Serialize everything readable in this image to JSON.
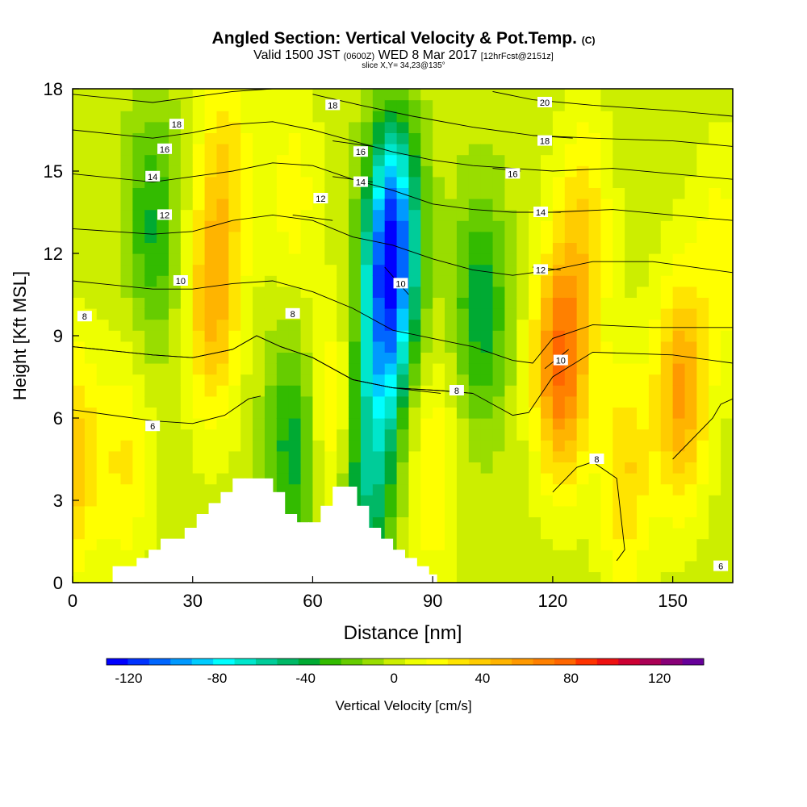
{
  "header": {
    "title": "Angled Section: Vertical Velocity & Pot.Temp.",
    "title_units": "(C)",
    "valid_a": "Valid 1500 JST",
    "valid_zulu": "(0600Z)",
    "valid_b": "WED 8 Mar 2017",
    "forecast": "[12hrFcst@2151z]",
    "slice": "slice X,Y= 34,23@135°"
  },
  "chart_data": {
    "type": "heatmap",
    "xlabel": "Distance [nm]",
    "ylabel": "Height [Kft MSL]",
    "xlim": [
      0,
      165
    ],
    "ylim": [
      0,
      18
    ],
    "x_ticks": [
      0,
      30,
      60,
      90,
      120,
      150
    ],
    "y_ticks": [
      0,
      3,
      6,
      9,
      12,
      15,
      18
    ],
    "colorbar": {
      "label": "Vertical Velocity [cm/s]",
      "range": [
        -130,
        140
      ],
      "ticks": [
        -120,
        -80,
        -40,
        0,
        40,
        80,
        120
      ],
      "colors": [
        "#0000ff",
        "#0033ff",
        "#0066ff",
        "#0099ff",
        "#00ccff",
        "#00ffff",
        "#00e6cc",
        "#00cc99",
        "#00b866",
        "#00aa33",
        "#33bb00",
        "#66cc00",
        "#99dd00",
        "#ccee00",
        "#eeff00",
        "#ffff00",
        "#ffe400",
        "#ffcc00",
        "#ffb400",
        "#ff9900",
        "#ff8000",
        "#ff6600",
        "#ff3300",
        "#ee1111",
        "#cc0033",
        "#aa0055",
        "#880077",
        "#660099"
      ]
    },
    "velocity_features": [
      {
        "x": 0,
        "y": 4.5,
        "w": 40
      },
      {
        "x": 13,
        "y": 4.5,
        "w": 25
      },
      {
        "x": 20,
        "y": 13,
        "w": -35
      },
      {
        "x": 35,
        "y": 10,
        "w": 45
      },
      {
        "x": 38,
        "y": 15,
        "w": 30
      },
      {
        "x": 55,
        "y": 5,
        "w": -40
      },
      {
        "x": 55,
        "y": 14,
        "w": 20
      },
      {
        "x": 65,
        "y": 6,
        "w": 30
      },
      {
        "x": 73,
        "y": 3,
        "w": -45
      },
      {
        "x": 80,
        "y": 12.5,
        "w": -115
      },
      {
        "x": 77,
        "y": 8,
        "w": -60
      },
      {
        "x": 90,
        "y": 4,
        "w": 25
      },
      {
        "x": 102,
        "y": 10,
        "w": -40
      },
      {
        "x": 122,
        "y": 8,
        "w": 75
      },
      {
        "x": 128,
        "y": 13,
        "w": 30
      },
      {
        "x": 138,
        "y": 4,
        "w": 35
      },
      {
        "x": 152,
        "y": 7,
        "w": 55
      },
      {
        "x": 162,
        "y": 12,
        "w": 20
      }
    ],
    "theta_contours": [
      {
        "label": "6",
        "points": [
          [
            0,
            6.3
          ],
          [
            20,
            5.9
          ],
          [
            30,
            5.8
          ],
          [
            38,
            6.1
          ],
          [
            44,
            6.7
          ],
          [
            47,
            6.8
          ]
        ],
        "label_at": [
          20,
          5.7
        ]
      },
      {
        "label": "8",
        "points": [
          [
            0,
            8.6
          ],
          [
            20,
            8.3
          ],
          [
            30,
            8.2
          ],
          [
            40,
            8.5
          ],
          [
            46,
            9.0
          ],
          [
            52,
            8.6
          ],
          [
            60,
            8.2
          ],
          [
            70,
            7.4
          ],
          [
            80,
            7.1
          ],
          [
            92,
            7.0
          ],
          [
            100,
            6.9
          ],
          [
            110,
            6.1
          ],
          [
            114,
            6.2
          ],
          [
            120,
            7.5
          ],
          [
            130,
            8.4
          ],
          [
            150,
            8.3
          ],
          [
            165,
            8.0
          ]
        ],
        "label_at": [
          3,
          9.7
        ]
      },
      {
        "label": "8",
        "points": [
          [
            0,
            8.6
          ],
          [
            20,
            8.3
          ],
          [
            30,
            8.2
          ],
          [
            40,
            8.5
          ],
          [
            46,
            9.0
          ],
          [
            52,
            8.6
          ],
          [
            60,
            8.2
          ],
          [
            70,
            7.4
          ],
          [
            80,
            7.1
          ],
          [
            92,
            7.0
          ],
          [
            100,
            6.9
          ]
        ],
        "label_at": [
          55,
          9.8
        ]
      },
      {
        "label": "8",
        "points": [
          [
            70,
            7.4
          ],
          [
            80,
            7.1
          ],
          [
            92,
            6.9
          ]
        ],
        "label_at": [
          96,
          7.0
        ]
      },
      {
        "label": "8",
        "points": [
          [
            120,
            3.3
          ],
          [
            126,
            4.2
          ],
          [
            130,
            4.4
          ],
          [
            136,
            3.8
          ],
          [
            138,
            1.2
          ],
          [
            136,
            0.8
          ]
        ],
        "label_at": [
          131,
          4.5
        ]
      },
      {
        "label": "6",
        "points": [
          [
            150,
            4.5
          ],
          [
            160,
            6.0
          ],
          [
            162,
            6.5
          ],
          [
            165,
            6.7
          ]
        ],
        "label_at": [
          162,
          0.6
        ]
      },
      {
        "label": "10",
        "points": [
          [
            0,
            11.0
          ],
          [
            20,
            10.7
          ],
          [
            30,
            10.7
          ],
          [
            40,
            10.9
          ],
          [
            50,
            11.0
          ],
          [
            60,
            10.6
          ],
          [
            70,
            10.0
          ],
          [
            80,
            9.2
          ],
          [
            90,
            8.9
          ],
          [
            100,
            8.6
          ],
          [
            110,
            8.1
          ],
          [
            115,
            8.0
          ],
          [
            120,
            8.9
          ],
          [
            130,
            9.4
          ],
          [
            145,
            9.3
          ],
          [
            165,
            9.3
          ]
        ],
        "label_at": [
          27,
          11.0
        ]
      },
      {
        "label": "10",
        "points": [
          [
            78,
            11.5
          ],
          [
            84,
            10.5
          ]
        ],
        "label_at": [
          82,
          10.9
        ]
      },
      {
        "label": "10",
        "points": [
          [
            118,
            7.8
          ],
          [
            124,
            8.5
          ]
        ],
        "label_at": [
          122,
          8.1
        ]
      },
      {
        "label": "12",
        "points": [
          [
            0,
            12.9
          ],
          [
            20,
            12.7
          ],
          [
            30,
            12.8
          ],
          [
            40,
            13.2
          ],
          [
            50,
            13.4
          ],
          [
            60,
            13.2
          ],
          [
            70,
            12.6
          ],
          [
            80,
            12.3
          ],
          [
            90,
            11.8
          ],
          [
            100,
            11.4
          ],
          [
            110,
            11.2
          ],
          [
            120,
            11.4
          ],
          [
            130,
            11.7
          ],
          [
            145,
            11.7
          ],
          [
            165,
            11.3
          ]
        ],
        "label_at": [
          23,
          13.4
        ]
      },
      {
        "label": "12",
        "points": [
          [
            55,
            13.4
          ],
          [
            65,
            13.2
          ]
        ],
        "label_at": [
          62,
          14.0
        ]
      },
      {
        "label": "12",
        "points": [
          [
            115,
            11.5
          ],
          [
            122,
            11.4
          ]
        ],
        "label_at": [
          117,
          11.4
        ]
      },
      {
        "label": "14",
        "points": [
          [
            0,
            14.9
          ],
          [
            20,
            14.6
          ],
          [
            30,
            14.8
          ],
          [
            40,
            15.0
          ],
          [
            50,
            15.3
          ],
          [
            60,
            15.2
          ],
          [
            70,
            14.7
          ],
          [
            80,
            14.3
          ],
          [
            90,
            13.8
          ],
          [
            100,
            13.6
          ],
          [
            110,
            13.5
          ],
          [
            120,
            13.5
          ],
          [
            135,
            13.6
          ],
          [
            150,
            13.4
          ],
          [
            165,
            13.2
          ]
        ],
        "label_at": [
          20,
          14.8
        ]
      },
      {
        "label": "14",
        "points": [
          [
            65,
            14.8
          ],
          [
            75,
            14.6
          ]
        ],
        "label_at": [
          72,
          14.6
        ]
      },
      {
        "label": "14",
        "points": [
          [
            115,
            13.5
          ],
          [
            122,
            13.5
          ]
        ],
        "label_at": [
          117,
          13.5
        ]
      },
      {
        "label": "16",
        "points": [
          [
            0,
            16.5
          ],
          [
            20,
            16.2
          ],
          [
            30,
            16.4
          ],
          [
            40,
            16.7
          ],
          [
            50,
            16.8
          ],
          [
            60,
            16.5
          ],
          [
            70,
            16.1
          ],
          [
            80,
            15.7
          ],
          [
            90,
            15.4
          ],
          [
            100,
            15.2
          ],
          [
            110,
            15.1
          ],
          [
            120,
            15.0
          ],
          [
            135,
            15.1
          ],
          [
            150,
            14.9
          ],
          [
            165,
            14.7
          ]
        ],
        "label_at": [
          23,
          15.8
        ]
      },
      {
        "label": "16",
        "points": [
          [
            65,
            16.1
          ],
          [
            75,
            15.9
          ]
        ],
        "label_at": [
          72,
          15.7
        ]
      },
      {
        "label": "16",
        "points": [
          [
            105,
            15.1
          ],
          [
            112,
            15.0
          ]
        ],
        "label_at": [
          110,
          14.9
        ]
      },
      {
        "label": "18",
        "points": [
          [
            0,
            17.8
          ],
          [
            20,
            17.5
          ],
          [
            30,
            17.7
          ],
          [
            40,
            17.9
          ],
          [
            50,
            18.0
          ]
        ],
        "label_at": [
          26,
          16.7
        ]
      },
      {
        "label": "18",
        "points": [
          [
            60,
            17.8
          ],
          [
            72,
            17.4
          ],
          [
            85,
            17.0
          ],
          [
            100,
            16.6
          ],
          [
            115,
            16.3
          ],
          [
            130,
            16.2
          ],
          [
            150,
            16.1
          ],
          [
            165,
            15.9
          ]
        ],
        "label_at": [
          65,
          17.4
        ]
      },
      {
        "label": "18",
        "points": [
          [
            115,
            16.3
          ],
          [
            125,
            16.2
          ]
        ],
        "label_at": [
          118,
          16.1
        ]
      },
      {
        "label": "20",
        "points": [
          [
            105,
            17.9
          ],
          [
            115,
            17.6
          ],
          [
            130,
            17.4
          ],
          [
            150,
            17.2
          ],
          [
            165,
            17.0
          ]
        ],
        "label_at": [
          118,
          17.5
        ]
      }
    ],
    "terrain_steps": [
      {
        "x0": 10,
        "x1": 16,
        "h": 0.6
      },
      {
        "x0": 16,
        "x1": 19,
        "h": 0.9
      },
      {
        "x0": 19,
        "x1": 22,
        "h": 1.2
      },
      {
        "x0": 22,
        "x1": 28,
        "h": 1.6
      },
      {
        "x0": 28,
        "x1": 31,
        "h": 2.0
      },
      {
        "x0": 31,
        "x1": 34,
        "h": 2.5
      },
      {
        "x0": 34,
        "x1": 37,
        "h": 2.9
      },
      {
        "x0": 37,
        "x1": 40,
        "h": 3.3
      },
      {
        "x0": 40,
        "x1": 43,
        "h": 3.8
      },
      {
        "x0": 43,
        "x1": 50,
        "h": 3.8
      },
      {
        "x0": 50,
        "x1": 53,
        "h": 3.3
      },
      {
        "x0": 53,
        "x1": 56,
        "h": 2.5
      },
      {
        "x0": 56,
        "x1": 59,
        "h": 2.2
      },
      {
        "x0": 59,
        "x1": 62,
        "h": 2.2
      },
      {
        "x0": 62,
        "x1": 65,
        "h": 2.8
      },
      {
        "x0": 65,
        "x1": 71,
        "h": 3.5
      },
      {
        "x0": 71,
        "x1": 74,
        "h": 2.8
      },
      {
        "x0": 74,
        "x1": 77,
        "h": 2.0
      },
      {
        "x0": 77,
        "x1": 80,
        "h": 1.6
      },
      {
        "x0": 80,
        "x1": 83,
        "h": 1.2
      },
      {
        "x0": 83,
        "x1": 86,
        "h": 0.9
      },
      {
        "x0": 86,
        "x1": 89,
        "h": 0.6
      },
      {
        "x0": 89,
        "x1": 91,
        "h": 0.3
      }
    ]
  }
}
